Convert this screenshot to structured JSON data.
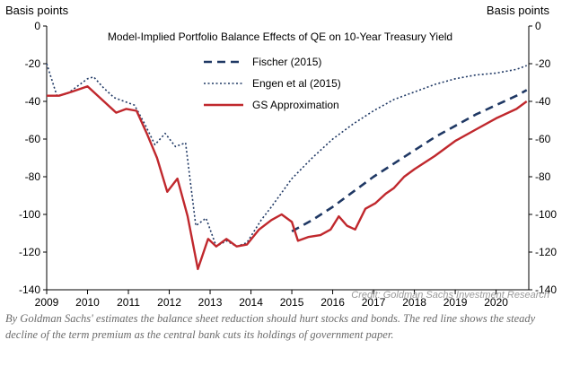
{
  "chart_data": {
    "type": "line",
    "title": "Model-Implied Portfolio Balance Effects of QE on 10-Year Treasury Yield",
    "ylabel_left": "Basis points",
    "ylabel_right": "Basis points",
    "ylim": [
      -140,
      0
    ],
    "yticks": [
      0,
      -20,
      -40,
      -60,
      -80,
      -100,
      -120,
      -140
    ],
    "xlim": [
      2009,
      2020.8
    ],
    "xticks": [
      "2009",
      "2010",
      "2011",
      "2012",
      "2013",
      "2014",
      "2015",
      "2016",
      "2017",
      "2018",
      "2019",
      "2020"
    ],
    "legend_position": "top-center",
    "series": [
      {
        "name": "Fischer (2015)",
        "style": "dashed",
        "color": "#1f3864",
        "points": [
          [
            2015.0,
            -109
          ],
          [
            2015.5,
            -103
          ],
          [
            2016.0,
            -96
          ],
          [
            2016.5,
            -88
          ],
          [
            2017.0,
            -80
          ],
          [
            2017.5,
            -73
          ],
          [
            2018.0,
            -66
          ],
          [
            2018.5,
            -59
          ],
          [
            2019.0,
            -53
          ],
          [
            2019.5,
            -47
          ],
          [
            2020.0,
            -42
          ],
          [
            2020.5,
            -37
          ],
          [
            2020.75,
            -34
          ]
        ]
      },
      {
        "name": "Engen et al (2015)",
        "style": "dotted",
        "color": "#1f3864",
        "points": [
          [
            2009.0,
            -20
          ],
          [
            2009.25,
            -37
          ],
          [
            2009.5,
            -36
          ],
          [
            2009.75,
            -32
          ],
          [
            2010.0,
            -28
          ],
          [
            2010.15,
            -27
          ],
          [
            2010.4,
            -33
          ],
          [
            2010.65,
            -38
          ],
          [
            2010.9,
            -40
          ],
          [
            2011.15,
            -42
          ],
          [
            2011.4,
            -52
          ],
          [
            2011.65,
            -63
          ],
          [
            2011.9,
            -57
          ],
          [
            2012.15,
            -64
          ],
          [
            2012.4,
            -62
          ],
          [
            2012.65,
            -106
          ],
          [
            2012.9,
            -102
          ],
          [
            2013.15,
            -117
          ],
          [
            2013.4,
            -114
          ],
          [
            2013.65,
            -117
          ],
          [
            2013.9,
            -115
          ],
          [
            2014.25,
            -103
          ],
          [
            2014.5,
            -96
          ],
          [
            2015.0,
            -81
          ],
          [
            2015.5,
            -70
          ],
          [
            2016.0,
            -60
          ],
          [
            2016.5,
            -52
          ],
          [
            2017.0,
            -45
          ],
          [
            2017.5,
            -39
          ],
          [
            2018.0,
            -35
          ],
          [
            2018.5,
            -31
          ],
          [
            2019.0,
            -28
          ],
          [
            2019.5,
            -26
          ],
          [
            2020.0,
            -25
          ],
          [
            2020.5,
            -23
          ],
          [
            2020.75,
            -21
          ]
        ]
      },
      {
        "name": "GS Approximation",
        "style": "solid",
        "color": "#c0282d",
        "points": [
          [
            2009.0,
            -37
          ],
          [
            2009.3,
            -37
          ],
          [
            2009.6,
            -35
          ],
          [
            2010.0,
            -32
          ],
          [
            2010.35,
            -39
          ],
          [
            2010.7,
            -46
          ],
          [
            2010.95,
            -44
          ],
          [
            2011.2,
            -45
          ],
          [
            2011.45,
            -57
          ],
          [
            2011.7,
            -70
          ],
          [
            2011.95,
            -88
          ],
          [
            2012.2,
            -81
          ],
          [
            2012.45,
            -101
          ],
          [
            2012.7,
            -129
          ],
          [
            2012.95,
            -113
          ],
          [
            2013.15,
            -117
          ],
          [
            2013.4,
            -113
          ],
          [
            2013.65,
            -117
          ],
          [
            2013.9,
            -116
          ],
          [
            2014.2,
            -108
          ],
          [
            2014.5,
            -103
          ],
          [
            2014.75,
            -100
          ],
          [
            2015.0,
            -104
          ],
          [
            2015.15,
            -114
          ],
          [
            2015.4,
            -112
          ],
          [
            2015.7,
            -111
          ],
          [
            2015.95,
            -108
          ],
          [
            2016.15,
            -101
          ],
          [
            2016.35,
            -106
          ],
          [
            2016.55,
            -108
          ],
          [
            2016.8,
            -97
          ],
          [
            2017.05,
            -94
          ],
          [
            2017.3,
            -89
          ],
          [
            2017.5,
            -86
          ],
          [
            2017.75,
            -80
          ],
          [
            2018.0,
            -76
          ],
          [
            2018.5,
            -69
          ],
          [
            2019.0,
            -61
          ],
          [
            2019.5,
            -55
          ],
          [
            2020.0,
            -49
          ],
          [
            2020.5,
            -44
          ],
          [
            2020.75,
            -40
          ]
        ]
      }
    ],
    "annotations": [
      "Credit: Goldman Sachs Investment Research"
    ]
  },
  "caption": "By Goldman Sachs' estimates the balance sheet reduction should hurt stocks and bonds. The red line shows the steady decline of the term premium as the central bank cuts its holdings of government paper."
}
